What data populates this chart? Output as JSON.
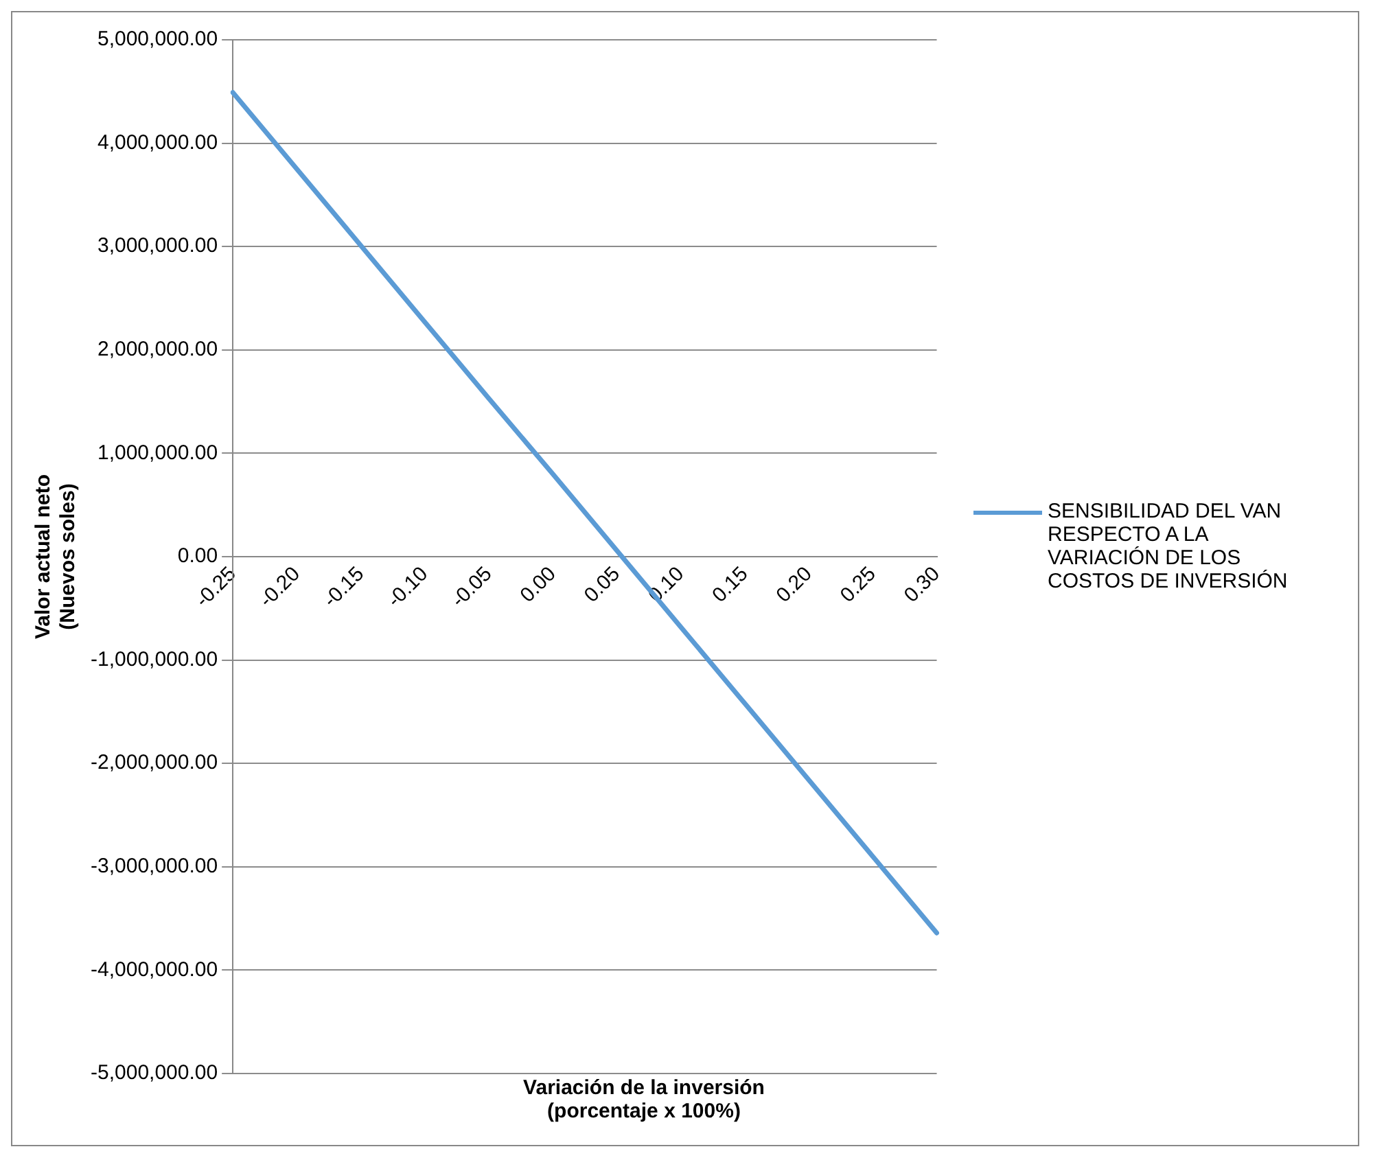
{
  "chart_data": {
    "type": "line",
    "xlabel": "Variación de la inversión\n(porcentaje x 100%)",
    "ylabel": "Valor actual neto\n(Nuevos soles)",
    "categories": [
      "-0.25",
      "-0.20",
      "-0.15",
      "-0.10",
      "-0.05",
      "0.00",
      "0.05",
      "0.10",
      "0.15",
      "0.20",
      "0.25",
      "0.30"
    ],
    "series": [
      {
        "name": "SENSIBILIDAD DEL VAN RESPECTO A LA VARIACIÓN DE LOS COSTOS DE INVERSIÓN",
        "color": "#5b9bd5",
        "values": [
          4490000,
          3750000,
          3010000,
          2270000,
          1530000,
          800000,
          60000,
          -680000,
          -1420000,
          -2160000,
          -2900000,
          -3640000
        ]
      }
    ],
    "ylim": [
      -5000000,
      5000000
    ],
    "yticks": [
      {
        "value": -5000000,
        "label": "-5,000,000.00"
      },
      {
        "value": -4000000,
        "label": "-4,000,000.00"
      },
      {
        "value": -3000000,
        "label": "-3,000,000.00"
      },
      {
        "value": -2000000,
        "label": "-2,000,000.00"
      },
      {
        "value": -1000000,
        "label": "-1,000,000.00"
      },
      {
        "value": 0,
        "label": "0.00"
      },
      {
        "value": 1000000,
        "label": "1,000,000.00"
      },
      {
        "value": 2000000,
        "label": "2,000,000.00"
      },
      {
        "value": 3000000,
        "label": "3,000,000.00"
      },
      {
        "value": 4000000,
        "label": "4,000,000.00"
      },
      {
        "value": 5000000,
        "label": "5,000,000.00"
      }
    ],
    "grid": "y",
    "legend": "right",
    "marker": "none",
    "line_style": "solid"
  }
}
